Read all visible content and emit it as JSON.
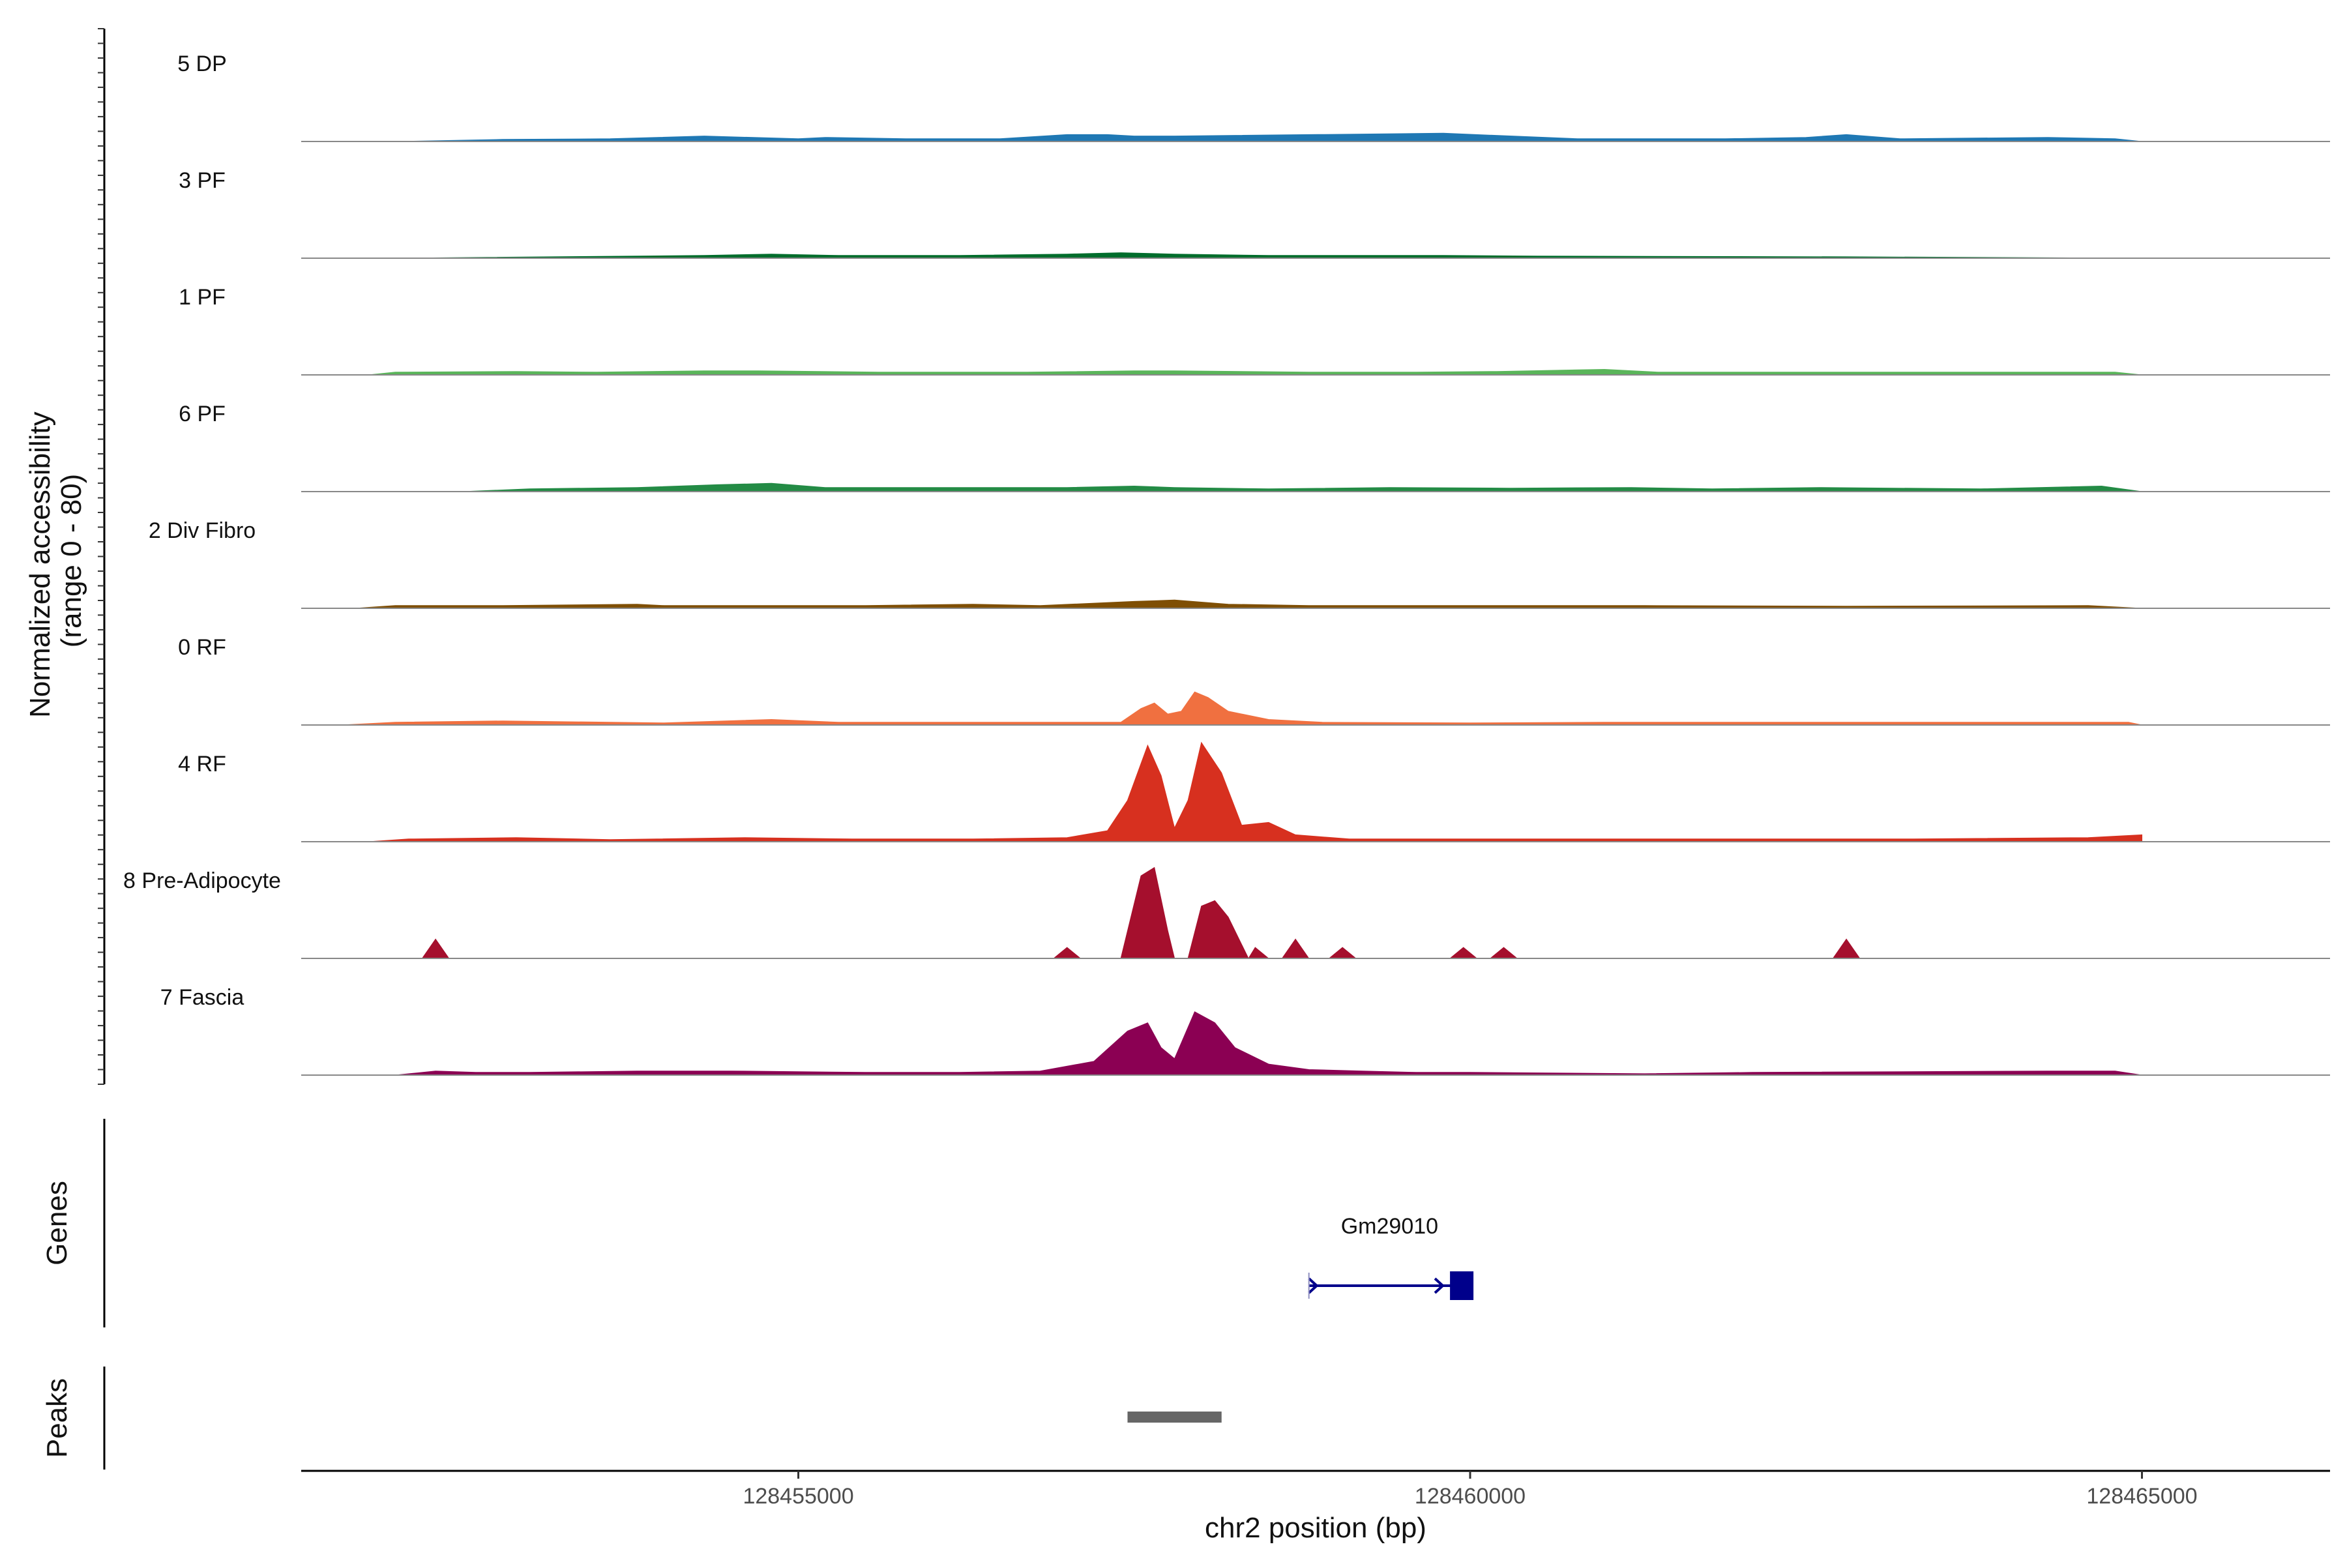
{
  "chart_data": {
    "type": "area",
    "genome": {
      "chromosome": "chr2",
      "xlim": [
        128451300,
        128466400
      ],
      "x_ticks": [
        128455000,
        128460000,
        128465000
      ],
      "x_tick_labels": [
        "128455000",
        "128460000",
        "128465000"
      ],
      "xlabel": "chr2 position (bp)"
    },
    "coverage": {
      "ylabel_line1": "Normalized accessibility",
      "ylabel_line2": "(range 0 - 80)",
      "ylim": [
        0,
        80
      ],
      "series": [
        {
          "name": "5 DP",
          "color": "#1f78b4",
          "points": [
            [
              128452000,
              0
            ],
            [
              128452800,
              1.5
            ],
            [
              128453600,
              2
            ],
            [
              128454300,
              4
            ],
            [
              128455000,
              2
            ],
            [
              128455200,
              3
            ],
            [
              128455800,
              2
            ],
            [
              128456500,
              2
            ],
            [
              128457000,
              5
            ],
            [
              128457300,
              5
            ],
            [
              128457500,
              4
            ],
            [
              128457800,
              4
            ],
            [
              128459800,
              6
            ],
            [
              128460800,
              2
            ],
            [
              128461900,
              2
            ],
            [
              128462500,
              3
            ],
            [
              128462800,
              5
            ],
            [
              128463200,
              2
            ],
            [
              128464300,
              3
            ],
            [
              128464800,
              2
            ],
            [
              128465000,
              0
            ]
          ]
        },
        {
          "name": "3 PF",
          "color": "#006d2c",
          "points": [
            [
              128452000,
              0
            ],
            [
              128453800,
              1.5
            ],
            [
              128454300,
              2
            ],
            [
              128454800,
              3
            ],
            [
              128455300,
              2
            ],
            [
              128456200,
              2
            ],
            [
              128457000,
              3
            ],
            [
              128457400,
              4
            ],
            [
              128457800,
              3
            ],
            [
              128458500,
              2
            ],
            [
              128459800,
              2
            ],
            [
              128460500,
              1.5
            ],
            [
              128462800,
              1
            ],
            [
              128465000,
              0
            ]
          ]
        },
        {
          "name": "1 PF",
          "color": "#5ab55a",
          "points": [
            [
              128451800,
              0
            ],
            [
              128452000,
              2
            ],
            [
              128452900,
              2.5
            ],
            [
              128453500,
              2
            ],
            [
              128454300,
              3
            ],
            [
              128454700,
              3
            ],
            [
              128455600,
              2
            ],
            [
              128456700,
              2
            ],
            [
              128457500,
              3
            ],
            [
              128457800,
              3
            ],
            [
              128458800,
              2
            ],
            [
              128459600,
              2
            ],
            [
              128460200,
              2.5
            ],
            [
              128461000,
              4
            ],
            [
              128461400,
              2
            ],
            [
              128462400,
              2
            ],
            [
              128463400,
              2
            ],
            [
              128464800,
              2
            ],
            [
              128465000,
              0
            ]
          ]
        },
        {
          "name": "6 PF",
          "color": "#238b45",
          "points": [
            [
              128452500,
              0
            ],
            [
              128453000,
              2
            ],
            [
              128453800,
              3
            ],
            [
              128454400,
              5
            ],
            [
              128454800,
              6
            ],
            [
              128455200,
              3
            ],
            [
              128456500,
              3
            ],
            [
              128457000,
              3
            ],
            [
              128457500,
              4
            ],
            [
              128457800,
              3
            ],
            [
              128458500,
              2
            ],
            [
              128459400,
              3
            ],
            [
              128460300,
              2.5
            ],
            [
              128461200,
              3
            ],
            [
              128461800,
              2
            ],
            [
              128462600,
              3
            ],
            [
              128463800,
              2
            ],
            [
              128464700,
              4
            ],
            [
              128465000,
              0
            ]
          ]
        },
        {
          "name": "2 Div Fibro",
          "color": "#7f4f04",
          "points": [
            [
              128451700,
              0
            ],
            [
              128452000,
              2
            ],
            [
              128452800,
              2
            ],
            [
              128453800,
              3
            ],
            [
              128454000,
              2
            ],
            [
              128455500,
              2
            ],
            [
              128456300,
              3
            ],
            [
              128456800,
              2
            ],
            [
              128457500,
              5
            ],
            [
              128457800,
              6
            ],
            [
              128458200,
              3
            ],
            [
              128458800,
              2
            ],
            [
              128459500,
              2
            ],
            [
              128460500,
              2
            ],
            [
              128461300,
              2
            ],
            [
              128462800,
              1.5
            ],
            [
              128464600,
              2
            ],
            [
              128465000,
              0
            ]
          ]
        },
        {
          "name": "0 RF",
          "color": "#f07040",
          "points": [
            [
              128451600,
              0
            ],
            [
              128452000,
              2
            ],
            [
              128452800,
              3
            ],
            [
              128454000,
              1.5
            ],
            [
              128454800,
              4
            ],
            [
              128455300,
              2
            ],
            [
              128456000,
              2
            ],
            [
              128456800,
              2
            ],
            [
              128457400,
              2
            ],
            [
              128457550,
              12
            ],
            [
              128457650,
              16
            ],
            [
              128457750,
              8
            ],
            [
              128457850,
              10
            ],
            [
              128457950,
              24
            ],
            [
              128458050,
              20
            ],
            [
              128458200,
              10
            ],
            [
              128458500,
              4
            ],
            [
              128458900,
              2
            ],
            [
              128460000,
              1.5
            ],
            [
              128461000,
              2
            ],
            [
              128462000,
              2
            ],
            [
              128463000,
              2
            ],
            [
              128464000,
              2
            ],
            [
              128464900,
              2
            ],
            [
              128465000,
              0
            ]
          ]
        },
        {
          "name": "4 RF",
          "color": "#d7301f",
          "points": [
            [
              128451800,
              0
            ],
            [
              128452100,
              2
            ],
            [
              128452900,
              3
            ],
            [
              128453600,
              1.5
            ],
            [
              128454600,
              3
            ],
            [
              128455400,
              2
            ],
            [
              128456300,
              2
            ],
            [
              128457000,
              3
            ],
            [
              128457300,
              8
            ],
            [
              128457450,
              30
            ],
            [
              128457600,
              70
            ],
            [
              128457700,
              48
            ],
            [
              128457800,
              10
            ],
            [
              128457900,
              30
            ],
            [
              128458000,
              72
            ],
            [
              128458150,
              50
            ],
            [
              128458300,
              12
            ],
            [
              128458500,
              14
            ],
            [
              128458700,
              5
            ],
            [
              128459100,
              2
            ],
            [
              128460000,
              2
            ],
            [
              128461300,
              2
            ],
            [
              128462300,
              2
            ],
            [
              128463300,
              2
            ],
            [
              128464600,
              3
            ],
            [
              128465000,
              5
            ]
          ]
        },
        {
          "name": "8 Pre-Adipocyte",
          "color": "#a50f2d",
          "points": [
            [
              128452200,
              0
            ],
            [
              128452300,
              14
            ],
            [
              128452400,
              0
            ],
            [
              128456900,
              0
            ],
            [
              128457000,
              8
            ],
            [
              128457100,
              0
            ],
            [
              128457400,
              0
            ],
            [
              128457550,
              60
            ],
            [
              128457650,
              66
            ],
            [
              128457750,
              20
            ],
            [
              128457800,
              0
            ],
            [
              128457900,
              0
            ],
            [
              128458000,
              38
            ],
            [
              128458100,
              42
            ],
            [
              128458200,
              30
            ],
            [
              128458350,
              0
            ],
            [
              128458400,
              8
            ],
            [
              128458500,
              0
            ],
            [
              128458600,
              0
            ],
            [
              128458700,
              14
            ],
            [
              128458800,
              0
            ],
            [
              128458950,
              0
            ],
            [
              128459050,
              8
            ],
            [
              128459150,
              0
            ],
            [
              128459850,
              0
            ],
            [
              128459950,
              8
            ],
            [
              128460050,
              0
            ],
            [
              128460150,
              0
            ],
            [
              128460250,
              8
            ],
            [
              128460350,
              0
            ],
            [
              128462700,
              0
            ],
            [
              128462800,
              14
            ],
            [
              128462900,
              0
            ]
          ]
        },
        {
          "name": "7 Fascia",
          "color": "#8b0053",
          "points": [
            [
              128452000,
              0
            ],
            [
              128452300,
              3
            ],
            [
              128452600,
              2
            ],
            [
              128453000,
              2
            ],
            [
              128453800,
              3
            ],
            [
              128454500,
              3
            ],
            [
              128455500,
              2
            ],
            [
              128456200,
              2
            ],
            [
              128456800,
              3
            ],
            [
              128457200,
              10
            ],
            [
              128457450,
              32
            ],
            [
              128457600,
              38
            ],
            [
              128457700,
              20
            ],
            [
              128457800,
              12
            ],
            [
              128457950,
              46
            ],
            [
              128458100,
              38
            ],
            [
              128458250,
              20
            ],
            [
              128458500,
              8
            ],
            [
              128458800,
              4
            ],
            [
              128459200,
              3
            ],
            [
              128459600,
              2
            ],
            [
              128460000,
              2
            ],
            [
              128461300,
              1
            ],
            [
              128462100,
              2
            ],
            [
              128464300,
              3
            ],
            [
              128464800,
              3
            ],
            [
              128465000,
              0
            ]
          ]
        }
      ]
    },
    "genes": {
      "title": "Genes",
      "items": [
        {
          "name": "Gm29010",
          "start": 128458800,
          "end": 128460000,
          "strand": "+",
          "exon": [
            128459850,
            128460000
          ],
          "color": "#00008b"
        }
      ]
    },
    "peaks": {
      "title": "Peaks",
      "items": [
        {
          "start": 128457450,
          "end": 128458150,
          "color": "#666666"
        }
      ]
    }
  }
}
